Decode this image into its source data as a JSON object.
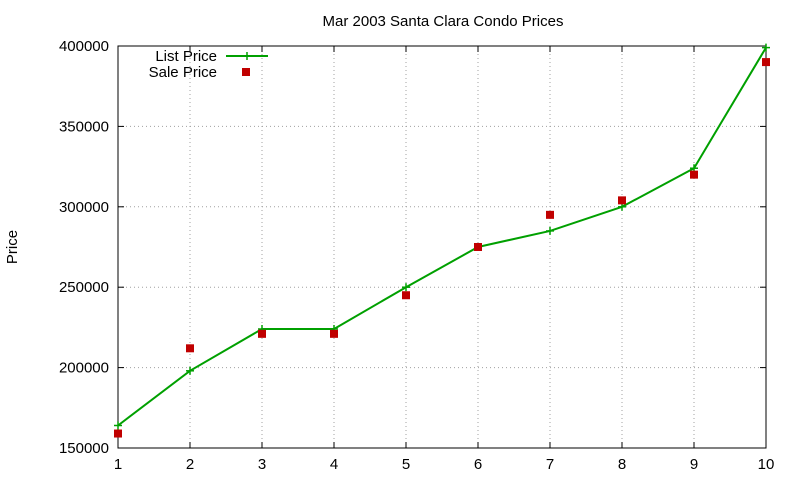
{
  "chart_data": {
    "type": "line",
    "title": "Mar 2003 Santa Clara Condo Prices",
    "xlabel": "",
    "ylabel": "Price",
    "xlim": [
      1,
      10
    ],
    "ylim": [
      150000,
      400000
    ],
    "xticks": [
      1,
      2,
      3,
      4,
      5,
      6,
      7,
      8,
      9,
      10
    ],
    "yticks": [
      150000,
      200000,
      250000,
      300000,
      350000,
      400000
    ],
    "grid": true,
    "legend_position": "top-left",
    "series": [
      {
        "name": "List Price",
        "style": "line-with-plus-markers",
        "color": "#00a000",
        "x": [
          1,
          2,
          3,
          4,
          5,
          6,
          7,
          8,
          9,
          10
        ],
        "y": [
          164000,
          198000,
          224000,
          224000,
          250000,
          275000,
          285000,
          300000,
          324000,
          399000
        ]
      },
      {
        "name": "Sale Price",
        "style": "square-markers",
        "color": "#c00000",
        "x": [
          1,
          2,
          3,
          4,
          5,
          6,
          7,
          8,
          9,
          10
        ],
        "y": [
          159000,
          212000,
          221000,
          221000,
          245000,
          275000,
          295000,
          304000,
          320000,
          390000
        ]
      }
    ]
  }
}
